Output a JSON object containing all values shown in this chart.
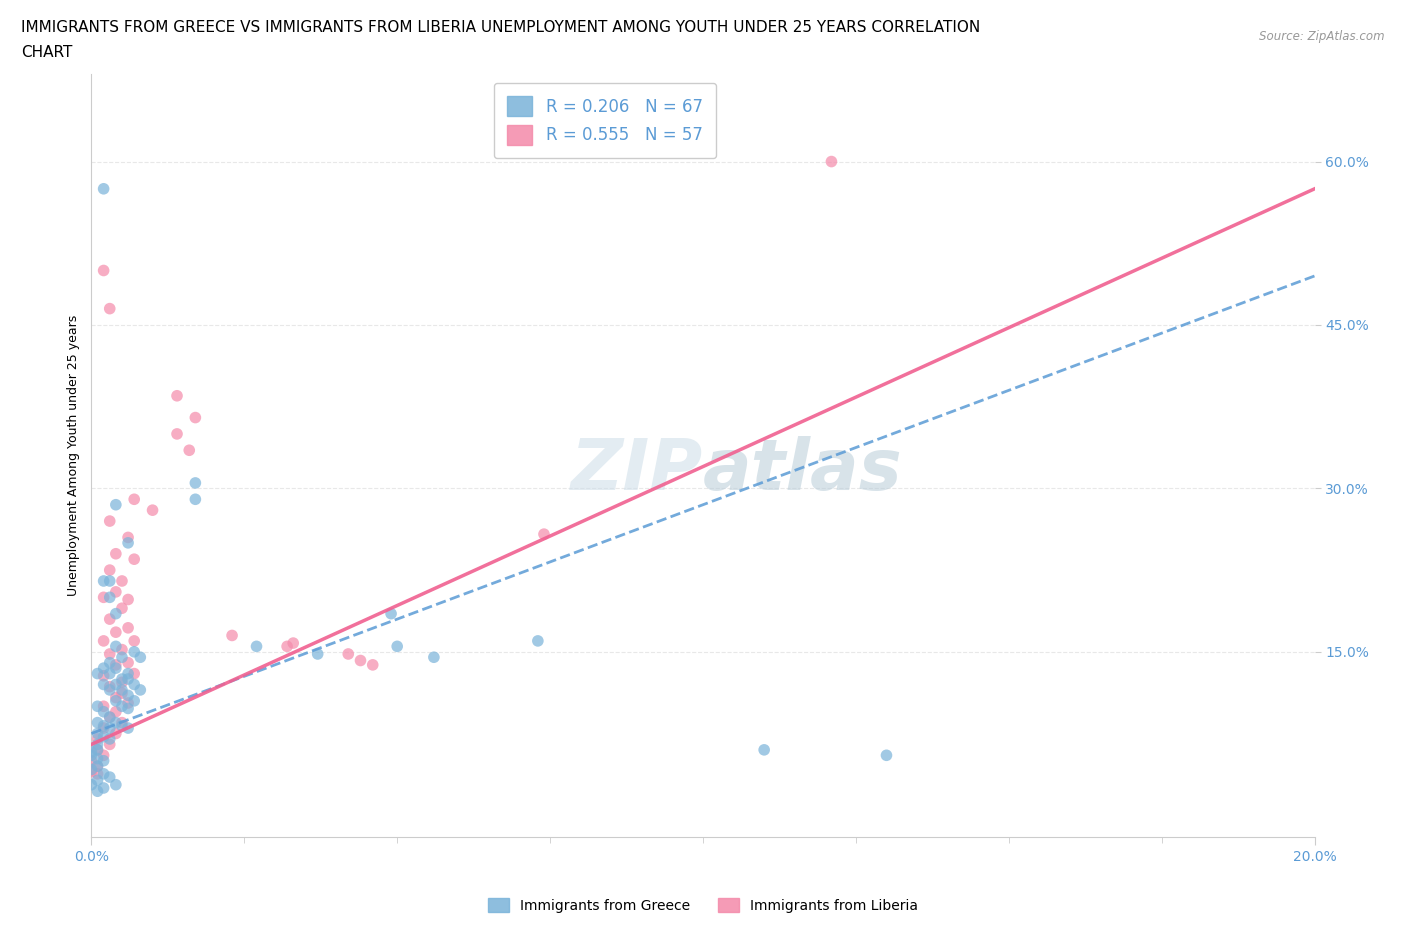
{
  "title_line1": "IMMIGRANTS FROM GREECE VS IMMIGRANTS FROM LIBERIA UNEMPLOYMENT AMONG YOUTH UNDER 25 YEARS CORRELATION",
  "title_line2": "CHART",
  "source": "Source: ZipAtlas.com",
  "ylabel": "Unemployment Among Youth under 25 years",
  "ytick_labels": [
    "15.0%",
    "30.0%",
    "45.0%",
    "60.0%"
  ],
  "ytick_values": [
    0.15,
    0.3,
    0.45,
    0.6
  ],
  "xlim": [
    0.0,
    0.2
  ],
  "ylim": [
    -0.02,
    0.68
  ],
  "greece_color": "#7ab3d9",
  "liberia_color": "#f48aaa",
  "greece_line_color": "#5b9bd5",
  "liberia_line_color": "#f06090",
  "watermark": "ZIPatlas",
  "greece_trend": [
    0.075,
    2.1
  ],
  "liberia_trend": [
    0.065,
    2.55
  ],
  "greece_scatter": [
    [
      0.002,
      0.575
    ],
    [
      0.017,
      0.29
    ],
    [
      0.017,
      0.305
    ],
    [
      0.004,
      0.285
    ],
    [
      0.006,
      0.25
    ],
    [
      0.003,
      0.215
    ],
    [
      0.003,
      0.2
    ],
    [
      0.004,
      0.185
    ],
    [
      0.002,
      0.215
    ],
    [
      0.004,
      0.155
    ],
    [
      0.005,
      0.145
    ],
    [
      0.006,
      0.13
    ],
    [
      0.007,
      0.15
    ],
    [
      0.008,
      0.145
    ],
    [
      0.003,
      0.14
    ],
    [
      0.004,
      0.135
    ],
    [
      0.005,
      0.125
    ],
    [
      0.006,
      0.125
    ],
    [
      0.007,
      0.12
    ],
    [
      0.008,
      0.115
    ],
    [
      0.002,
      0.135
    ],
    [
      0.003,
      0.13
    ],
    [
      0.004,
      0.12
    ],
    [
      0.005,
      0.115
    ],
    [
      0.006,
      0.11
    ],
    [
      0.007,
      0.105
    ],
    [
      0.001,
      0.13
    ],
    [
      0.002,
      0.12
    ],
    [
      0.003,
      0.115
    ],
    [
      0.004,
      0.105
    ],
    [
      0.005,
      0.1
    ],
    [
      0.006,
      0.098
    ],
    [
      0.001,
      0.1
    ],
    [
      0.002,
      0.095
    ],
    [
      0.003,
      0.09
    ],
    [
      0.004,
      0.085
    ],
    [
      0.005,
      0.082
    ],
    [
      0.006,
      0.08
    ],
    [
      0.001,
      0.085
    ],
    [
      0.002,
      0.082
    ],
    [
      0.003,
      0.08
    ],
    [
      0.001,
      0.075
    ],
    [
      0.002,
      0.072
    ],
    [
      0.003,
      0.07
    ],
    [
      0.001,
      0.065
    ],
    [
      0.001,
      0.06
    ],
    [
      0.0,
      0.058
    ],
    [
      0.0,
      0.055
    ],
    [
      0.001,
      0.052
    ],
    [
      0.002,
      0.05
    ],
    [
      0.001,
      0.045
    ],
    [
      0.0,
      0.042
    ],
    [
      0.002,
      0.038
    ],
    [
      0.003,
      0.035
    ],
    [
      0.001,
      0.032
    ],
    [
      0.0,
      0.028
    ],
    [
      0.004,
      0.028
    ],
    [
      0.002,
      0.025
    ],
    [
      0.001,
      0.022
    ],
    [
      0.049,
      0.185
    ],
    [
      0.073,
      0.16
    ],
    [
      0.05,
      0.155
    ],
    [
      0.056,
      0.145
    ],
    [
      0.027,
      0.155
    ],
    [
      0.037,
      0.148
    ],
    [
      0.11,
      0.06
    ],
    [
      0.13,
      0.055
    ]
  ],
  "liberia_scatter": [
    [
      0.121,
      0.6
    ],
    [
      0.002,
      0.5
    ],
    [
      0.003,
      0.465
    ],
    [
      0.014,
      0.385
    ],
    [
      0.017,
      0.365
    ],
    [
      0.014,
      0.35
    ],
    [
      0.016,
      0.335
    ],
    [
      0.007,
      0.29
    ],
    [
      0.01,
      0.28
    ],
    [
      0.003,
      0.27
    ],
    [
      0.006,
      0.255
    ],
    [
      0.004,
      0.24
    ],
    [
      0.007,
      0.235
    ],
    [
      0.003,
      0.225
    ],
    [
      0.005,
      0.215
    ],
    [
      0.004,
      0.205
    ],
    [
      0.006,
      0.198
    ],
    [
      0.002,
      0.2
    ],
    [
      0.005,
      0.19
    ],
    [
      0.003,
      0.18
    ],
    [
      0.006,
      0.172
    ],
    [
      0.004,
      0.168
    ],
    [
      0.007,
      0.16
    ],
    [
      0.002,
      0.16
    ],
    [
      0.005,
      0.152
    ],
    [
      0.003,
      0.148
    ],
    [
      0.006,
      0.14
    ],
    [
      0.004,
      0.138
    ],
    [
      0.007,
      0.13
    ],
    [
      0.002,
      0.128
    ],
    [
      0.005,
      0.122
    ],
    [
      0.003,
      0.118
    ],
    [
      0.005,
      0.112
    ],
    [
      0.004,
      0.108
    ],
    [
      0.006,
      0.103
    ],
    [
      0.002,
      0.1
    ],
    [
      0.004,
      0.095
    ],
    [
      0.003,
      0.09
    ],
    [
      0.005,
      0.085
    ],
    [
      0.002,
      0.08
    ],
    [
      0.004,
      0.075
    ],
    [
      0.001,
      0.07
    ],
    [
      0.003,
      0.065
    ],
    [
      0.001,
      0.06
    ],
    [
      0.002,
      0.055
    ],
    [
      0.0,
      0.05
    ],
    [
      0.001,
      0.045
    ],
    [
      0.0,
      0.04
    ],
    [
      0.001,
      0.038
    ],
    [
      0.023,
      0.165
    ],
    [
      0.033,
      0.158
    ],
    [
      0.032,
      0.155
    ],
    [
      0.042,
      0.148
    ],
    [
      0.044,
      0.142
    ],
    [
      0.046,
      0.138
    ],
    [
      0.074,
      0.258
    ]
  ],
  "title_fontsize": 11,
  "axis_label_fontsize": 9,
  "tick_fontsize": 10,
  "background_color": "#ffffff",
  "grid_color": "#e8e8e8"
}
